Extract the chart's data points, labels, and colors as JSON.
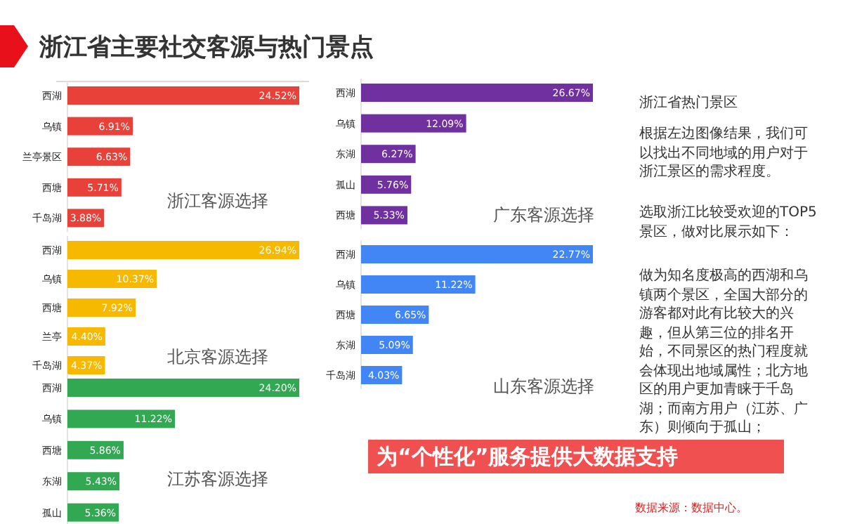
{
  "chart_data": [
    {
      "type": "other",
      "title": "浙江省主要社交客源与热门景点"
    },
    {
      "type": "bar",
      "orientation": "horizontal",
      "title": "浙江客源选择",
      "color": "#e8413a",
      "categories": [
        "西湖",
        "乌镇",
        "兰亭景区",
        "西塘",
        "千岛湖"
      ],
      "values": [
        24.52,
        6.91,
        6.63,
        5.71,
        3.88
      ],
      "value_labels": [
        "24.52%",
        "6.91%",
        "6.63%",
        "5.71%",
        "3.88%"
      ]
    },
    {
      "type": "bar",
      "orientation": "horizontal",
      "title": "北京客源选择",
      "color": "#f7b900",
      "categories": [
        "西湖",
        "乌镇",
        "西塘",
        "兰亭",
        "千岛湖"
      ],
      "values": [
        26.94,
        10.37,
        7.92,
        4.4,
        4.37
      ],
      "value_labels": [
        "26.94%",
        "10.37%",
        "7.92%",
        "4.40%",
        "4.37%"
      ]
    },
    {
      "type": "bar",
      "orientation": "horizontal",
      "title": "江苏客源选择",
      "color": "#33a853",
      "categories": [
        "西湖",
        "乌镇",
        "西塘",
        "东湖",
        "孤山"
      ],
      "values": [
        24.2,
        11.22,
        5.86,
        5.43,
        5.36
      ],
      "value_labels": [
        "24.20%",
        "11.22%",
        "5.86%",
        "5.43%",
        "5.36%"
      ]
    },
    {
      "type": "bar",
      "orientation": "horizontal",
      "title": "广东客源选择",
      "color": "#7030a0",
      "categories": [
        "西湖",
        "乌镇",
        "东湖",
        "孤山",
        "西塘"
      ],
      "values": [
        26.67,
        12.09,
        6.27,
        5.76,
        5.33
      ],
      "value_labels": [
        "26.67%",
        "12.09%",
        "6.27%",
        "5.76%",
        "5.33%"
      ]
    },
    {
      "type": "bar",
      "orientation": "horizontal",
      "title": "山东客源选择",
      "color": "#4285f4",
      "categories": [
        "西湖",
        "乌镇",
        "西塘",
        "东湖",
        "千岛湖"
      ],
      "values": [
        22.77,
        11.22,
        6.65,
        5.09,
        4.03
      ],
      "value_labels": [
        "22.77%",
        "11.22%",
        "6.65%",
        "5.09%",
        "4.03%"
      ]
    },
    {
      "type": "other",
      "title": "浙江省热门景区",
      "annotations": [
        "根据左边图像结果，我们可以找出不同地域的用户对于浙江景区的需求程度。",
        "选取浙江比较受欢迎的TOP5景区，做对比展示如下：",
        "做为知名度极高的西湖和乌镇两个景区，全国大部分的游客都对此有比较大的兴趣，但从第三位的排名开始，不同景区的热门程度就会体现出地域属性；北方地区的用户更加青睐于千岛湖；而南方用户（江苏、广东）则倾向于孤山；",
        "为“个性化”服务提供大数据支持",
        "数据来源：数据中心。"
      ]
    }
  ]
}
